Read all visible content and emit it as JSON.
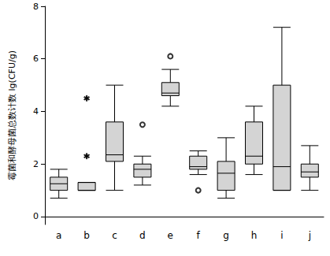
{
  "chart_data": {
    "type": "boxplot",
    "y_label": "霉菌和酵母菌总数计数 lg(CFU/g)",
    "categories": [
      "a",
      "b",
      "c",
      "d",
      "e",
      "f",
      "g",
      "h",
      "i",
      "j"
    ],
    "min": [
      0.7,
      1.0,
      1.0,
      1.2,
      4.2,
      1.6,
      0.7,
      1.6,
      1.0,
      1.0
    ],
    "q1": [
      1.0,
      1.0,
      2.1,
      1.5,
      4.6,
      1.8,
      1.0,
      2.0,
      1.0,
      1.5
    ],
    "median": [
      1.25,
      1.0,
      2.35,
      1.8,
      4.7,
      1.9,
      1.65,
      2.3,
      1.9,
      1.7
    ],
    "q3": [
      1.5,
      1.3,
      3.6,
      2.0,
      5.1,
      2.3,
      2.1,
      3.6,
      5.0,
      2.0
    ],
    "max": [
      1.8,
      1.3,
      5.0,
      2.3,
      5.6,
      2.5,
      3.0,
      4.2,
      7.2,
      2.7
    ],
    "outliers": [
      {
        "category": "b",
        "value": 4.5,
        "marker": "star"
      },
      {
        "category": "b",
        "value": 2.3,
        "marker": "star"
      },
      {
        "category": "d",
        "value": 3.5,
        "marker": "circle"
      },
      {
        "category": "e",
        "value": 6.1,
        "marker": "circle"
      },
      {
        "category": "f",
        "value": 1.0,
        "marker": "circle"
      }
    ],
    "color": "#d4d4d4",
    "ylim": [
      -0.3,
      8
    ],
    "yticks": [
      0,
      2,
      4,
      6,
      8
    ],
    "grid": false
  }
}
